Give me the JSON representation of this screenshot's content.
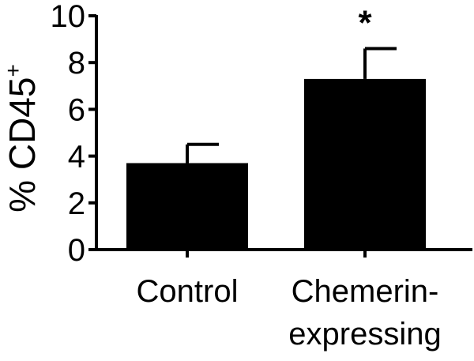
{
  "chart_data": {
    "type": "bar",
    "title": "",
    "ylabel": "% CD45",
    "ylabel_superscript": "+",
    "ylim": [
      0,
      10
    ],
    "yticks": [
      0,
      2,
      4,
      6,
      8,
      10
    ],
    "yticks_labels": [
      "0",
      "2",
      "4",
      "6",
      "8",
      "10"
    ],
    "categories": [
      {
        "lines": [
          "Control"
        ]
      },
      {
        "lines": [
          "Chemerin-",
          "expressing"
        ]
      }
    ],
    "values": [
      3.7,
      7.3
    ],
    "error_upper": [
      0.8,
      1.3
    ],
    "annotations": [
      "",
      "*"
    ],
    "bar_color": "#000000",
    "grid": false,
    "legend": "none"
  }
}
